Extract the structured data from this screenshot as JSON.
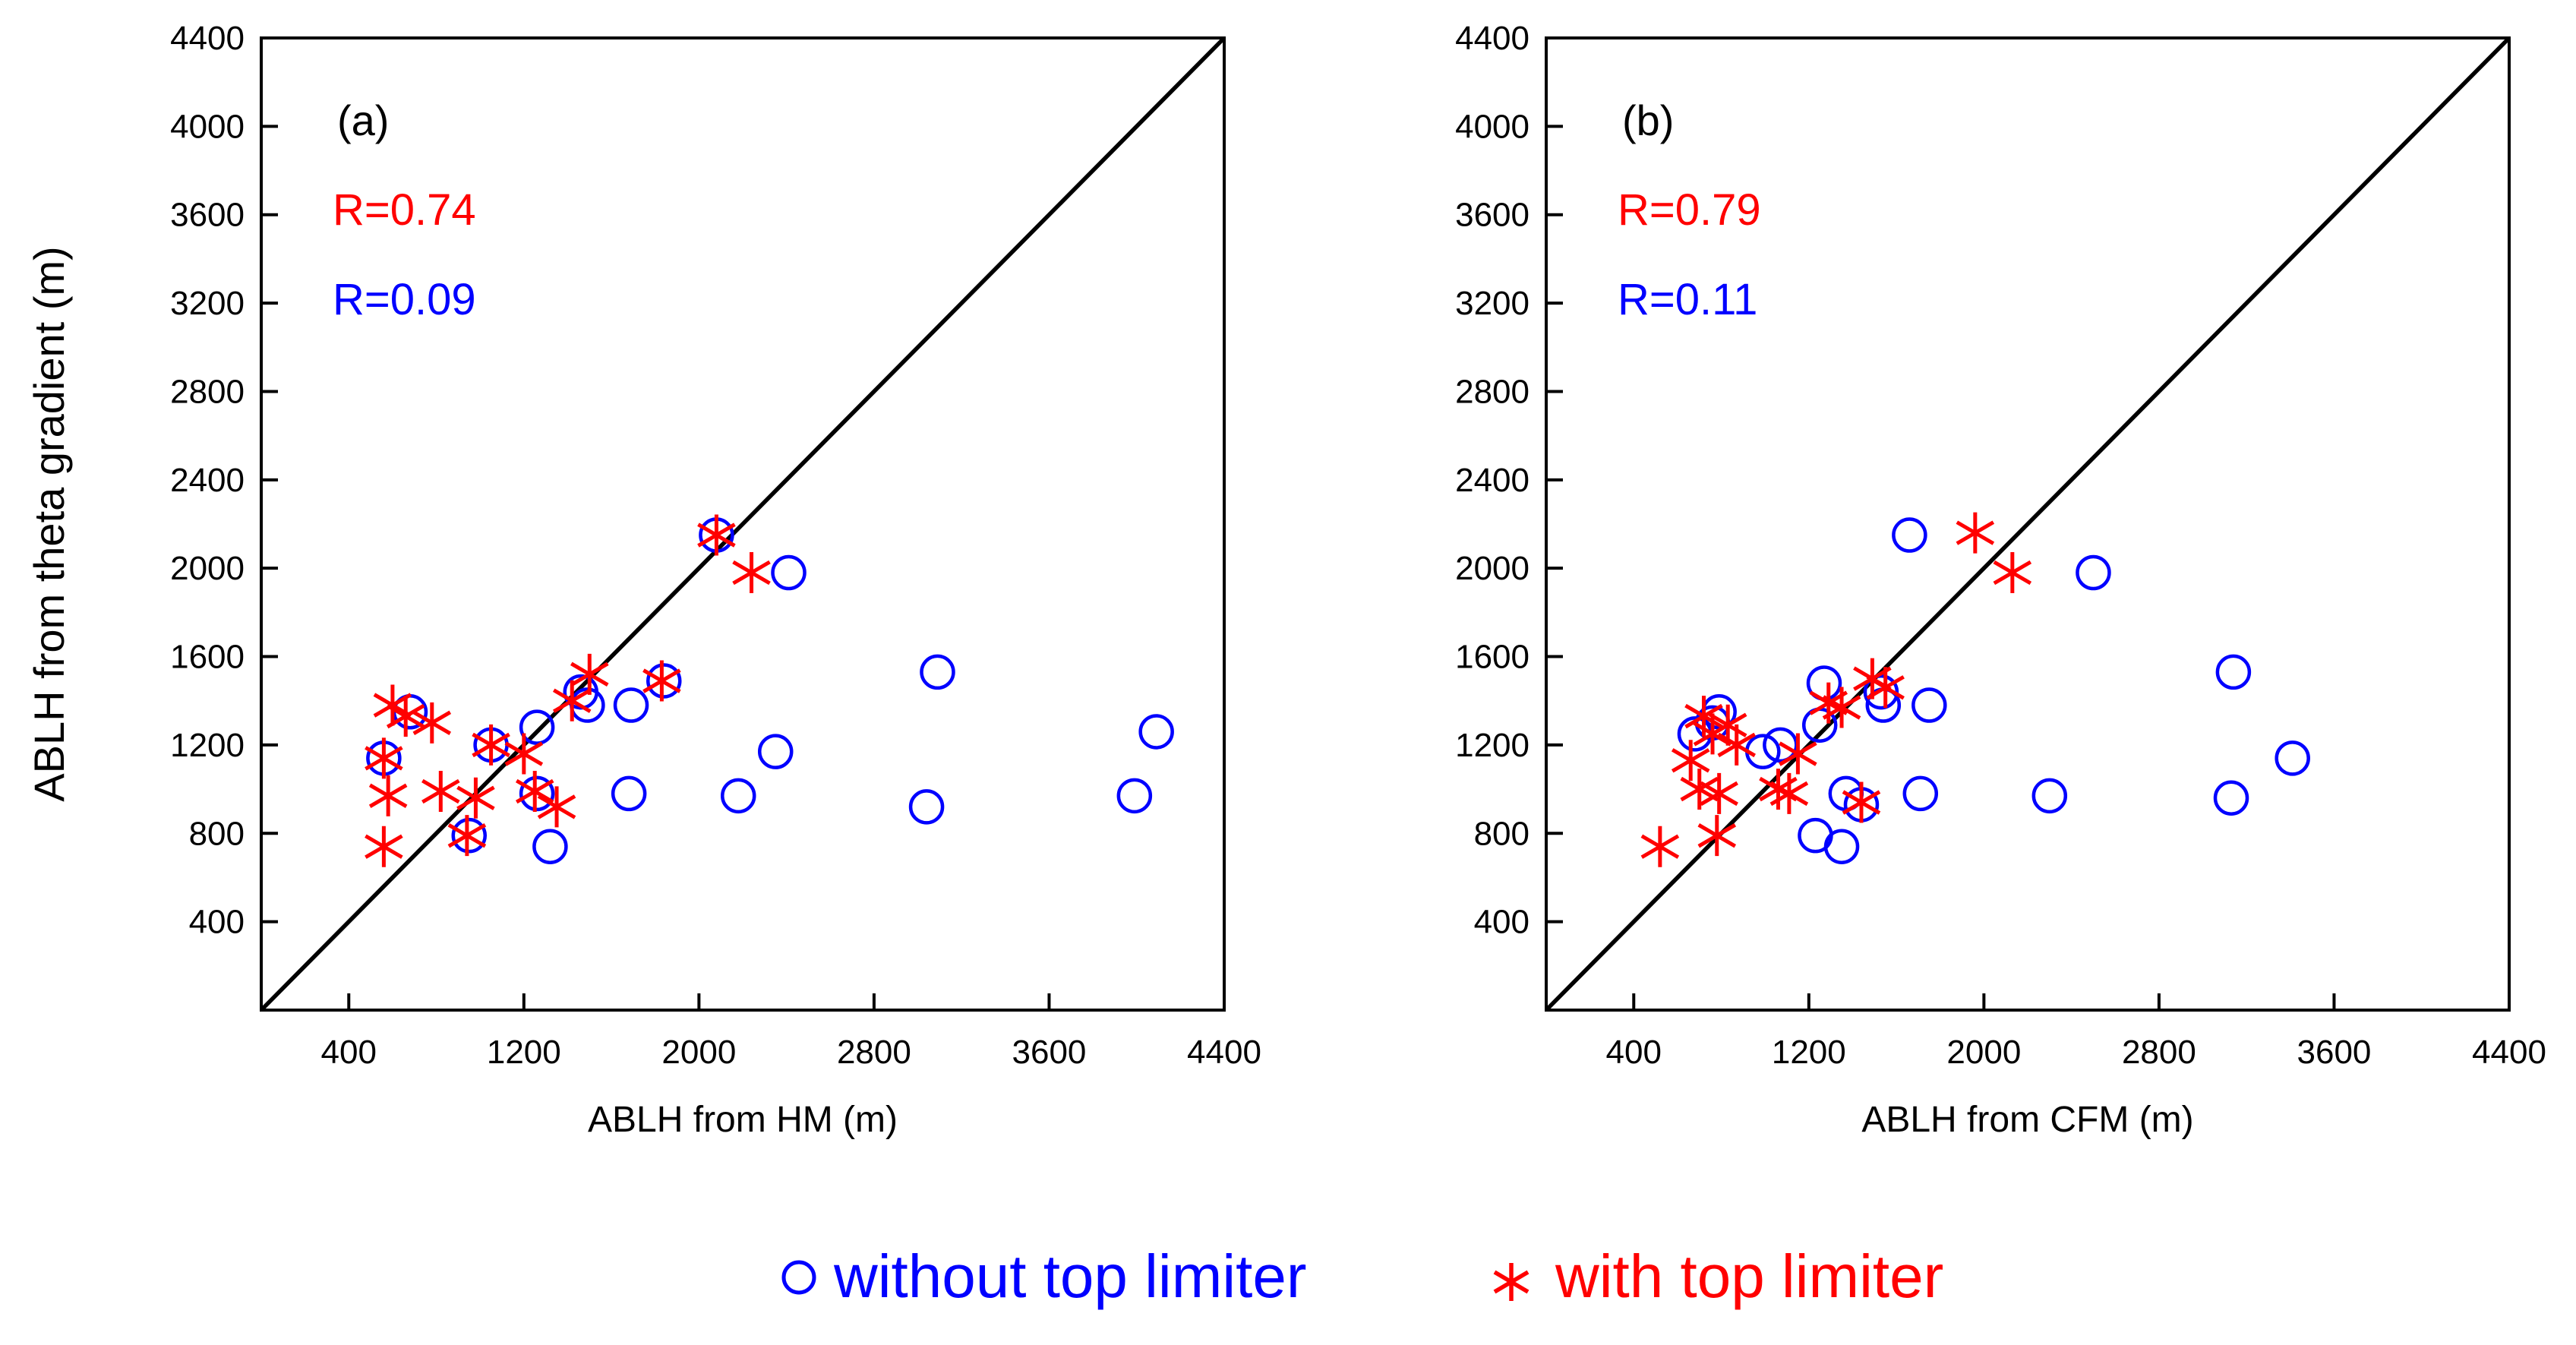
{
  "chart_data": [
    {
      "type": "scatter",
      "panel_label": "(a)",
      "xlabel": "ABLH from HM (m)",
      "ylabel": "ABLH from theta gradient (m)",
      "xlim": [
        0,
        4400
      ],
      "ylim": [
        0,
        4400
      ],
      "xticks": [
        400,
        1200,
        2000,
        2800,
        3600,
        4400
      ],
      "yticks": [
        400,
        800,
        1200,
        1600,
        2000,
        2400,
        2800,
        3200,
        3600,
        4000,
        4400
      ],
      "reference_line": "1:1",
      "annotations": [
        {
          "text": "R=0.74",
          "color": "#ff0000"
        },
        {
          "text": "R=0.09",
          "color": "#0000ff"
        }
      ],
      "series": [
        {
          "name": "without top limiter",
          "marker": "circle",
          "color": "#0000ff",
          "points": [
            [
              560,
              1140
            ],
            [
              680,
              1350
            ],
            [
              950,
              790
            ],
            [
              1050,
              1200
            ],
            [
              1260,
              1280
            ],
            [
              1260,
              980
            ],
            [
              1320,
              740
            ],
            [
              1460,
              1440
            ],
            [
              1490,
              1380
            ],
            [
              1680,
              980
            ],
            [
              1690,
              1380
            ],
            [
              1840,
              1490
            ],
            [
              2080,
              2150
            ],
            [
              2180,
              970
            ],
            [
              2350,
              1170
            ],
            [
              2410,
              1980
            ],
            [
              3040,
              920
            ],
            [
              3090,
              1530
            ],
            [
              3990,
              970
            ],
            [
              4090,
              1260
            ]
          ]
        },
        {
          "name": "with top limiter",
          "marker": "asterisk",
          "color": "#ff0000",
          "points": [
            [
              560,
              740
            ],
            [
              580,
              970
            ],
            [
              560,
              1140
            ],
            [
              600,
              1380
            ],
            [
              660,
              1330
            ],
            [
              780,
              1300
            ],
            [
              820,
              990
            ],
            [
              940,
              790
            ],
            [
              980,
              960
            ],
            [
              1050,
              1200
            ],
            [
              1200,
              1160
            ],
            [
              1250,
              990
            ],
            [
              1350,
              920
            ],
            [
              1420,
              1400
            ],
            [
              1500,
              1520
            ],
            [
              1830,
              1490
            ],
            [
              2080,
              2150
            ],
            [
              2240,
              1980
            ]
          ]
        }
      ]
    },
    {
      "type": "scatter",
      "panel_label": "(b)",
      "xlabel": "ABLH from CFM (m)",
      "ylabel": "",
      "xlim": [
        0,
        4400
      ],
      "ylim": [
        0,
        4400
      ],
      "xticks": [
        400,
        1200,
        2000,
        2800,
        3600,
        4400
      ],
      "yticks": [
        400,
        800,
        1200,
        1600,
        2000,
        2400,
        2800,
        3200,
        3600,
        4000,
        4400
      ],
      "reference_line": "1:1",
      "annotations": [
        {
          "text": "R=0.79",
          "color": "#ff0000"
        },
        {
          "text": "R=0.11",
          "color": "#0000ff"
        }
      ],
      "series": [
        {
          "name": "without top limiter",
          "marker": "circle",
          "color": "#0000ff",
          "points": [
            [
              680,
              1250
            ],
            [
              760,
              1300
            ],
            [
              790,
              1350
            ],
            [
              990,
              1170
            ],
            [
              1070,
              1200
            ],
            [
              1230,
              790
            ],
            [
              1250,
              1290
            ],
            [
              1270,
              1480
            ],
            [
              1350,
              740
            ],
            [
              1370,
              980
            ],
            [
              1440,
              930
            ],
            [
              1530,
              1440
            ],
            [
              1540,
              1380
            ],
            [
              1660,
              2150
            ],
            [
              1710,
              980
            ],
            [
              1750,
              1380
            ],
            [
              2300,
              970
            ],
            [
              2500,
              1980
            ],
            [
              3130,
              960
            ],
            [
              3140,
              1530
            ],
            [
              3410,
              1140
            ]
          ]
        },
        {
          "name": "with top limiter",
          "marker": "asterisk",
          "color": "#ff0000",
          "points": [
            [
              520,
              740
            ],
            [
              660,
              1130
            ],
            [
              700,
              1000
            ],
            [
              720,
              1330
            ],
            [
              760,
              1250
            ],
            [
              780,
              790
            ],
            [
              790,
              980
            ],
            [
              830,
              1290
            ],
            [
              870,
              1200
            ],
            [
              1060,
              1000
            ],
            [
              1110,
              980
            ],
            [
              1150,
              1160
            ],
            [
              1290,
              1390
            ],
            [
              1350,
              1370
            ],
            [
              1440,
              940
            ],
            [
              1490,
              1500
            ],
            [
              1550,
              1460
            ],
            [
              1960,
              2160
            ],
            [
              2130,
              1980
            ]
          ]
        }
      ]
    }
  ],
  "legend": {
    "items": [
      {
        "label": "without top limiter",
        "marker": "circle",
        "color": "#0000ff"
      },
      {
        "label": "with top limiter",
        "marker": "asterisk",
        "color": "#ff0000"
      }
    ]
  }
}
